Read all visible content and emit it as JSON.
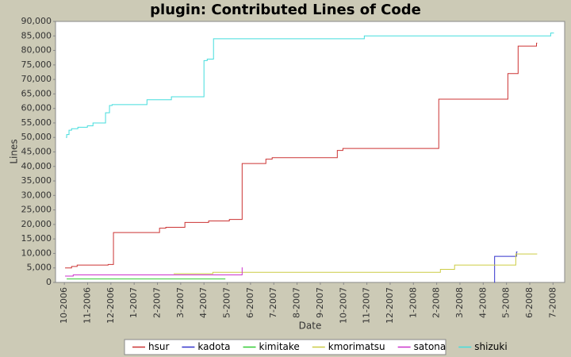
{
  "chart_data": {
    "type": "line",
    "step": true,
    "grid": false,
    "title": "plugin: Contributed Lines of Code",
    "x_label": "Date",
    "y_label": "Lines",
    "xlim": [
      -0.38,
      21.5
    ],
    "xticks": [
      {
        "value": 0,
        "label": "10-2006"
      },
      {
        "value": 1,
        "label": "11-2006"
      },
      {
        "value": 2,
        "label": "12-2006"
      },
      {
        "value": 3,
        "label": "1-2007"
      },
      {
        "value": 4,
        "label": "2-2007"
      },
      {
        "value": 5,
        "label": "3-2007"
      },
      {
        "value": 6,
        "label": "4-2007"
      },
      {
        "value": 7,
        "label": "5-2007"
      },
      {
        "value": 8,
        "label": "6-2007"
      },
      {
        "value": 9,
        "label": "7-2007"
      },
      {
        "value": 10,
        "label": "8-2007"
      },
      {
        "value": 11,
        "label": "9-2007"
      },
      {
        "value": 12,
        "label": "10-2007"
      },
      {
        "value": 13,
        "label": "11-2007"
      },
      {
        "value": 14,
        "label": "12-2007"
      },
      {
        "value": 15,
        "label": "1-2008"
      },
      {
        "value": 16,
        "label": "2-2008"
      },
      {
        "value": 17,
        "label": "3-2008"
      },
      {
        "value": 18,
        "label": "4-2008"
      },
      {
        "value": 19,
        "label": "5-2008"
      },
      {
        "value": 20,
        "label": "6-2008"
      },
      {
        "value": 21,
        "label": "7-2008"
      }
    ],
    "ylim": [
      0,
      90000
    ],
    "yticks": [
      0,
      {
        "value": 5000,
        "label": "5,000"
      },
      {
        "value": 10000,
        "label": "10,000"
      },
      {
        "value": 15000,
        "label": "15,000"
      },
      {
        "value": 20000,
        "label": "20,000"
      },
      {
        "value": 25000,
        "label": "25,000"
      },
      {
        "value": 30000,
        "label": "30,000"
      },
      {
        "value": 35000,
        "label": "35,000"
      },
      {
        "value": 40000,
        "label": "40,000"
      },
      {
        "value": 45000,
        "label": "45,000"
      },
      {
        "value": 50000,
        "label": "50,000"
      },
      {
        "value": 55000,
        "label": "55,000"
      },
      {
        "value": 60000,
        "label": "60,000"
      },
      {
        "value": 65000,
        "label": "65,000"
      },
      {
        "value": 70000,
        "label": "70,000"
      },
      {
        "value": 75000,
        "label": "75,000"
      },
      {
        "value": 80000,
        "label": "80,000"
      },
      {
        "value": 85000,
        "label": "85,000"
      },
      {
        "value": 90000,
        "label": "90,000"
      }
    ],
    "legend": "bottom",
    "series": [
      {
        "name": "hsur",
        "color": "#cc3333",
        "x": [
          0.03,
          0.31,
          0.55,
          1.88,
          2.11,
          4.09,
          4.36,
          5.18,
          6.2,
          7.09,
          7.64,
          8.66,
          8.93,
          11.73,
          11.97,
          16.09,
          19.06,
          19.5,
          20.29,
          20.32
        ],
        "values": [
          5000,
          5500,
          6000,
          6200,
          17200,
          18700,
          19000,
          20700,
          21200,
          21700,
          41000,
          42500,
          43000,
          45500,
          46200,
          63200,
          72000,
          81500,
          82500,
          82500
        ]
      },
      {
        "name": "kadota",
        "color": "#3333cc",
        "x": [
          18.48,
          18.49,
          19.43,
          19.47
        ],
        "values": [
          0,
          9000,
          10500,
          10500
        ]
      },
      {
        "name": "kimitake",
        "color": "#33cc33",
        "x": [
          0.1,
          6.92
        ],
        "values": [
          1200,
          1200
        ]
      },
      {
        "name": "kmorimatsu",
        "color": "#cccc44",
        "x": [
          4.7,
          6.38,
          16.16,
          16.77,
          19.4,
          20.32
        ],
        "values": [
          3000,
          3500,
          4500,
          6000,
          9800,
          9800
        ]
      },
      {
        "name": "satona",
        "color": "#cc33cc",
        "x": [
          0.03,
          0.38,
          7.63,
          7.64
        ],
        "values": [
          2200,
          2600,
          2600,
          5200
        ]
      },
      {
        "name": "shizuki",
        "color": "#44dddd",
        "x": [
          0.07,
          0.1,
          0.2,
          0.31,
          0.58,
          0.99,
          1.23,
          1.77,
          1.94,
          2.05,
          3.55,
          4.6,
          6.0,
          6.14,
          6.41,
          12.89,
          20.9,
          21.04
        ],
        "values": [
          50000,
          51000,
          52500,
          53000,
          53500,
          54000,
          55000,
          58500,
          61000,
          61300,
          63000,
          64000,
          76500,
          77000,
          84000,
          85000,
          86000,
          86000
        ]
      }
    ]
  }
}
